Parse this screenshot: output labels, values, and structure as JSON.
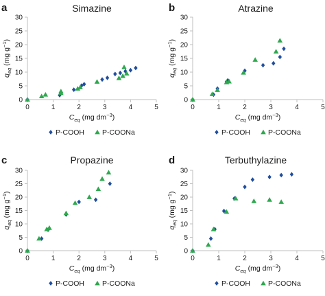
{
  "figure": {
    "background": "#ffffff",
    "axis_color": "#bfbfbf"
  },
  "chart_data": [
    {
      "letter": "a",
      "type": "scatter",
      "title": "Simazine",
      "xlabel": {
        "main": "C",
        "sub": "eq",
        "unit": "(mg dm",
        "exp": "−3",
        "close": ")"
      },
      "ylabel": {
        "main": "q",
        "sub": "eq",
        "unit": "(mg g",
        "exp": "−1",
        "close": ")"
      },
      "xlim": [
        0,
        5
      ],
      "ylim": [
        0,
        30
      ],
      "xticks": [
        "0",
        "1",
        "2",
        "3",
        "4",
        "5"
      ],
      "yticks": [
        "0",
        "5",
        "10",
        "15",
        "20",
        "25",
        "30"
      ],
      "legend": "bottom",
      "series": [
        {
          "name": "P-COOH",
          "marker": "diamond",
          "color": "#1f4e9e",
          "points": [
            [
              0,
              0
            ],
            [
              1.25,
              1.6
            ],
            [
              1.8,
              3.6
            ],
            [
              2.1,
              5.1
            ],
            [
              2.2,
              5.6
            ],
            [
              2.9,
              7.3
            ],
            [
              3.1,
              7.9
            ],
            [
              3.4,
              9.3
            ],
            [
              3.6,
              9.7
            ],
            [
              3.8,
              10.3
            ],
            [
              4.0,
              10.7
            ],
            [
              4.2,
              11.5
            ]
          ]
        },
        {
          "name": "P-COONa",
          "marker": "triangle",
          "color": "#2fa84f",
          "points": [
            [
              0,
              0
            ],
            [
              0.55,
              1.2
            ],
            [
              0.7,
              1.8
            ],
            [
              1.3,
              2.4
            ],
            [
              1.3,
              3.0
            ],
            [
              1.95,
              4.0
            ],
            [
              2.05,
              4.5
            ],
            [
              2.7,
              6.5
            ],
            [
              3.55,
              7.8
            ],
            [
              3.7,
              8.6
            ],
            [
              3.75,
              11.8
            ],
            [
              3.85,
              9.5
            ]
          ]
        }
      ]
    },
    {
      "letter": "b",
      "type": "scatter",
      "title": "Atrazine",
      "xlabel": {
        "main": "C",
        "sub": "eq",
        "unit": "(mg dm",
        "exp": "−3",
        "close": ")"
      },
      "ylabel": {
        "main": "q",
        "sub": "eq",
        "unit": "(mg g",
        "exp": "−1",
        "close": ")"
      },
      "xlim": [
        0,
        5
      ],
      "ylim": [
        0,
        30
      ],
      "xticks": [
        "0",
        "1",
        "2",
        "3",
        "4",
        "5"
      ],
      "yticks": [
        "0",
        "5",
        "10",
        "15",
        "20",
        "25",
        "30"
      ],
      "legend": "bottom",
      "series": [
        {
          "name": "P-COOH",
          "marker": "diamond",
          "color": "#1f4e9e",
          "points": [
            [
              0,
              0
            ],
            [
              0.8,
              1.8
            ],
            [
              0.95,
              4.0
            ],
            [
              1.3,
              6.5
            ],
            [
              1.35,
              7.0
            ],
            [
              2.0,
              10.5
            ],
            [
              2.7,
              12.5
            ],
            [
              3.1,
              13.2
            ],
            [
              3.35,
              15.5
            ],
            [
              3.5,
              18.5
            ]
          ]
        },
        {
          "name": "P-COONa",
          "marker": "triangle",
          "color": "#2fa84f",
          "points": [
            [
              0,
              0
            ],
            [
              0.75,
              2.0
            ],
            [
              0.95,
              3.5
            ],
            [
              1.3,
              6.3
            ],
            [
              1.4,
              6.6
            ],
            [
              1.95,
              9.8
            ],
            [
              2.4,
              14.5
            ],
            [
              3.2,
              17.5
            ],
            [
              3.35,
              21.5
            ]
          ]
        }
      ]
    },
    {
      "letter": "c",
      "type": "scatter",
      "title": "Propazine",
      "xlabel": {
        "main": "C",
        "sub": "eq",
        "unit": "(mg dm",
        "exp": "−3",
        "close": ")"
      },
      "ylabel": {
        "main": "q",
        "sub": "eq",
        "unit": "(mg g",
        "exp": "−1",
        "close": ")"
      },
      "xlim": [
        0,
        5
      ],
      "ylim": [
        0,
        30
      ],
      "xticks": [
        "0",
        "1",
        "2",
        "3",
        "4",
        "5"
      ],
      "yticks": [
        "0",
        "5",
        "10",
        "15",
        "20",
        "25",
        "30"
      ],
      "legend": "bottom",
      "series": [
        {
          "name": "P-COOH",
          "marker": "diamond",
          "color": "#1f4e9e",
          "points": [
            [
              0,
              0
            ],
            [
              0.55,
              4.5
            ],
            [
              0.8,
              7.8
            ],
            [
              1.5,
              13.5
            ],
            [
              2.0,
              18.2
            ],
            [
              2.65,
              19.0
            ],
            [
              3.2,
              25.0
            ]
          ]
        },
        {
          "name": "P-COONa",
          "marker": "triangle",
          "color": "#2fa84f",
          "points": [
            [
              0,
              0
            ],
            [
              0.45,
              4.5
            ],
            [
              0.75,
              8.0
            ],
            [
              0.85,
              8.5
            ],
            [
              1.5,
              14.0
            ],
            [
              1.85,
              17.8
            ],
            [
              2.4,
              20.0
            ],
            [
              2.75,
              23.0
            ],
            [
              2.9,
              26.8
            ],
            [
              3.15,
              29.2
            ]
          ]
        }
      ]
    },
    {
      "letter": "d",
      "type": "scatter",
      "title": "Terbuthylazine",
      "xlabel": {
        "main": "C",
        "sub": "eq",
        "unit": "(mg dm",
        "exp": "−3",
        "close": ")"
      },
      "ylabel": {
        "main": "q",
        "sub": "eq",
        "unit": "(mg g",
        "exp": "−1",
        "close": ")"
      },
      "xlim": [
        0,
        5
      ],
      "ylim": [
        0,
        30
      ],
      "xticks": [
        "0",
        "1",
        "2",
        "3",
        "4",
        "5"
      ],
      "yticks": [
        "0",
        "5",
        "10",
        "15",
        "20",
        "25",
        "30"
      ],
      "legend": "bottom",
      "series": [
        {
          "name": "P-COOH",
          "marker": "diamond",
          "color": "#1f4e9e",
          "points": [
            [
              0,
              0
            ],
            [
              0.7,
              4.5
            ],
            [
              0.85,
              8.0
            ],
            [
              1.2,
              14.8
            ],
            [
              1.6,
              19.5
            ],
            [
              2.0,
              23.8
            ],
            [
              2.3,
              26.5
            ],
            [
              2.95,
              27.5
            ],
            [
              3.4,
              28.2
            ],
            [
              3.8,
              28.5
            ]
          ]
        },
        {
          "name": "P-COONa",
          "marker": "triangle",
          "color": "#2fa84f",
          "points": [
            [
              0,
              0
            ],
            [
              0.6,
              2.2
            ],
            [
              0.8,
              8.0
            ],
            [
              1.3,
              14.5
            ],
            [
              1.65,
              19.5
            ],
            [
              2.35,
              18.5
            ],
            [
              2.95,
              19.0
            ],
            [
              3.4,
              18.2
            ]
          ]
        }
      ]
    }
  ]
}
